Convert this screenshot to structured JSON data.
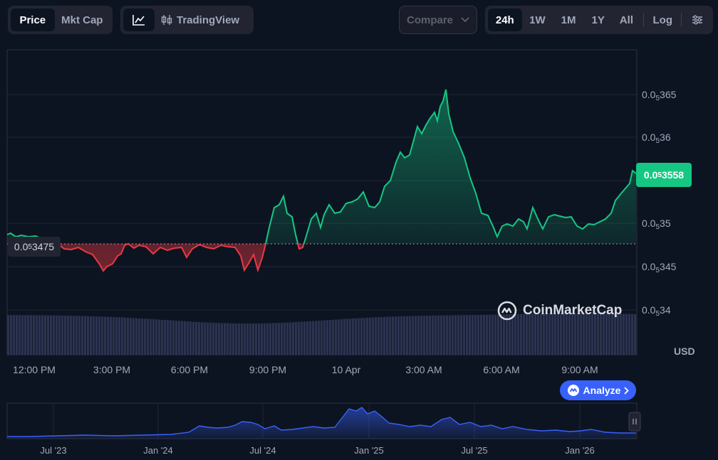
{
  "toolbar": {
    "type_tabs": [
      {
        "label": "Price",
        "active": true
      },
      {
        "label": "Mkt Cap",
        "active": false
      }
    ],
    "tradingview_label": "TradingView",
    "compare_label": "Compare",
    "ranges": [
      {
        "label": "24h",
        "active": true
      },
      {
        "label": "1W"
      },
      {
        "label": "1M"
      },
      {
        "label": "1Y"
      },
      {
        "label": "All"
      }
    ],
    "log_label": "Log"
  },
  "chart": {
    "current_price": {
      "prefix": "0.0",
      "sub": "5",
      "digits": "3558"
    },
    "base_price": {
      "prefix": "0.0",
      "sub": "5",
      "digits": "3475"
    },
    "y_ticks": [
      {
        "prefix": "0.0",
        "sub": "5",
        "digits": "365"
      },
      {
        "prefix": "0.0",
        "sub": "5",
        "digits": "36"
      },
      {
        "prefix": "0.0",
        "sub": "5",
        "digits": "35"
      },
      {
        "prefix": "0.0",
        "sub": "5",
        "digits": "345"
      },
      {
        "prefix": "0.0",
        "sub": "5",
        "digits": "34"
      }
    ],
    "currency": "USD",
    "x_ticks": [
      "12:00 PM",
      "3:00 PM",
      "6:00 PM",
      "9:00 PM",
      "10 Apr",
      "3:00 AM",
      "6:00 AM",
      "9:00 AM"
    ],
    "watermark": "CoinMarketCap",
    "analyze_label": "Analyze",
    "colors": {
      "up": "#16c784",
      "down": "#ea3943",
      "accent": "#3861fb",
      "volume": "#2b3350"
    }
  },
  "navigator": {
    "labels": [
      "Jul '23",
      "Jan '24",
      "Jul '24",
      "Jan '25",
      "Jul '25",
      "Jan '26"
    ]
  },
  "icons": {
    "chart_line": "line-chart-icon",
    "candles": "candlestick-icon",
    "settings": "sliders-icon",
    "chevron": "chevron-down-icon"
  }
}
